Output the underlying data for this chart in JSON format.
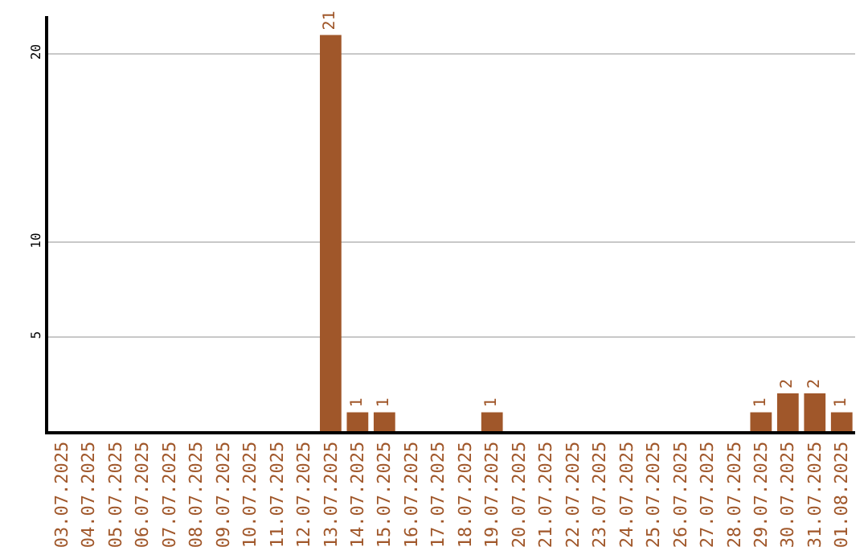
{
  "chart_data": {
    "type": "bar",
    "categories": [
      "03.07.2025",
      "04.07.2025",
      "05.07.2025",
      "06.07.2025",
      "07.07.2025",
      "08.07.2025",
      "09.07.2025",
      "10.07.2025",
      "11.07.2025",
      "12.07.2025",
      "13.07.2025",
      "14.07.2025",
      "15.07.2025",
      "16.07.2025",
      "17.07.2025",
      "18.07.2025",
      "19.07.2025",
      "20.07.2025",
      "21.07.2025",
      "22.07.2025",
      "23.07.2025",
      "24.07.2025",
      "25.07.2025",
      "26.07.2025",
      "27.07.2025",
      "28.07.2025",
      "29.07.2025",
      "30.07.2025",
      "31.07.2025",
      "01.08.2025"
    ],
    "values": [
      0,
      0,
      0,
      0,
      0,
      0,
      0,
      0,
      0,
      0,
      21,
      1,
      1,
      0,
      0,
      0,
      1,
      0,
      0,
      0,
      0,
      0,
      0,
      0,
      0,
      0,
      1,
      2,
      2,
      1
    ],
    "value_labels": [
      null,
      null,
      null,
      null,
      null,
      null,
      null,
      null,
      null,
      null,
      "21",
      "1",
      "1",
      null,
      null,
      null,
      "1",
      null,
      null,
      null,
      null,
      null,
      null,
      null,
      null,
      null,
      "1",
      "2",
      "2",
      "1"
    ],
    "color": "#a0572a",
    "ylim": [
      0,
      22
    ],
    "yticks": [
      5,
      10,
      20
    ],
    "grid": "y",
    "legend": false
  }
}
